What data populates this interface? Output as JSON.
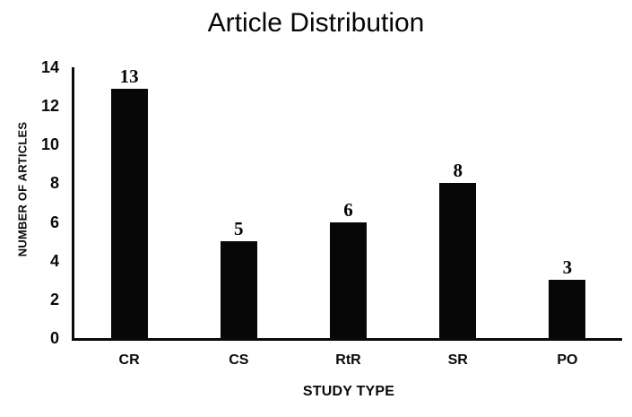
{
  "chart_data": {
    "type": "bar",
    "title": "Article Distribution",
    "xlabel": "STUDY TYPE",
    "ylabel": "NUMBER OF ARTICLES",
    "categories": [
      "CR",
      "CS",
      "RtR",
      "SR",
      "PO"
    ],
    "values": [
      13,
      5,
      6,
      8,
      3
    ],
    "ylim": [
      0,
      14
    ],
    "yticks": [
      0,
      2,
      4,
      6,
      8,
      10,
      12,
      14
    ],
    "grid": false,
    "legend": false,
    "bar_color": "#070707",
    "axis_color": "#0a0a0a",
    "text_color": "#090909",
    "background_color": "#ffffff"
  }
}
